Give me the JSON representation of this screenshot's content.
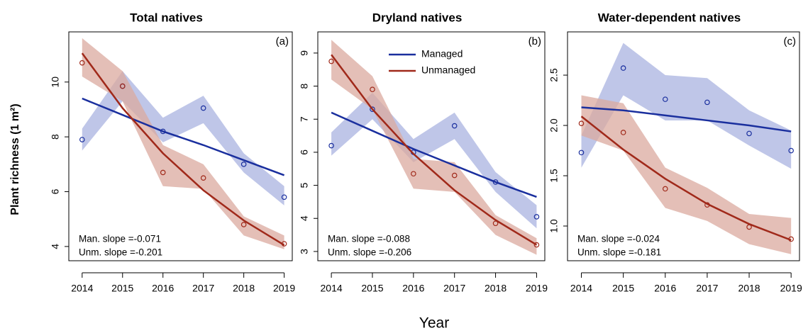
{
  "ylabel": "Plant richness (1 m²)",
  "xlabel": "Year",
  "chart_data": [
    {
      "type": "line",
      "title": "Total natives",
      "panel_label": "(a)",
      "x": [
        2014,
        2015,
        2016,
        2017,
        2018,
        2019
      ],
      "xlim": [
        2013.67,
        2019.2
      ],
      "xticks": [
        2014,
        2015,
        2016,
        2017,
        2018,
        2019
      ],
      "ylim": [
        3.48,
        11.83
      ],
      "yticks": [
        4,
        6,
        8,
        10
      ],
      "series": [
        {
          "color": "#1a2f9e",
          "band_color": "#a9b3e0",
          "annotation": "Man. slope =-0.071",
          "values": [
            7.9,
            9.85,
            8.2,
            9.05,
            7.0,
            5.8
          ],
          "fit": [
            9.4,
            8.8,
            8.2,
            7.7,
            7.15,
            6.6
          ],
          "lower": [
            7.5,
            9.3,
            7.8,
            8.5,
            6.7,
            5.5
          ],
          "upper": [
            8.3,
            10.4,
            8.7,
            9.5,
            7.4,
            6.2
          ]
        },
        {
          "color": "#a0291a",
          "band_color": "#dba99f",
          "annotation": "Unm. slope =-0.201",
          "values": [
            10.7,
            9.85,
            6.7,
            6.5,
            4.8,
            4.1
          ],
          "fit": [
            11.05,
            9.05,
            7.4,
            6.05,
            4.95,
            4.05
          ],
          "lower": [
            10.2,
            9.3,
            6.2,
            6.1,
            4.4,
            3.9
          ],
          "upper": [
            11.6,
            10.4,
            7.7,
            7.0,
            5.1,
            4.4
          ]
        }
      ]
    },
    {
      "type": "line",
      "title": "Dryland natives",
      "panel_label": "(b)",
      "legend": "top",
      "x": [
        2014,
        2015,
        2016,
        2017,
        2018,
        2019
      ],
      "xlim": [
        2013.67,
        2019.2
      ],
      "xticks": [
        2014,
        2015,
        2016,
        2017,
        2018,
        2019
      ],
      "ylim": [
        2.72,
        9.64
      ],
      "yticks": [
        3,
        4,
        5,
        6,
        7,
        8,
        9
      ],
      "series": [
        {
          "name": "Managed",
          "color": "#1a2f9e",
          "band_color": "#a9b3e0",
          "annotation": "Man. slope =-0.088",
          "values": [
            6.2,
            7.3,
            6.0,
            6.8,
            5.1,
            4.05
          ],
          "fit": [
            7.2,
            6.65,
            6.1,
            5.6,
            5.1,
            4.65
          ],
          "lower": [
            5.9,
            7.0,
            5.7,
            6.4,
            4.8,
            3.7
          ],
          "upper": [
            6.6,
            7.8,
            6.4,
            7.2,
            5.4,
            4.4
          ]
        },
        {
          "name": "Unmanaged",
          "color": "#a0291a",
          "band_color": "#dba99f",
          "annotation": "Unm. slope =-0.206",
          "values": [
            8.75,
            7.9,
            5.35,
            5.3,
            3.85,
            3.2
          ],
          "fit": [
            8.95,
            7.3,
            5.95,
            4.85,
            3.95,
            3.2
          ],
          "lower": [
            8.2,
            7.3,
            4.9,
            4.8,
            3.5,
            2.9
          ],
          "upper": [
            9.4,
            8.3,
            5.8,
            5.7,
            4.1,
            3.4
          ]
        }
      ]
    },
    {
      "type": "line",
      "title": "Water-dependent natives",
      "panel_label": "(c)",
      "x": [
        2014,
        2015,
        2016,
        2017,
        2018,
        2019
      ],
      "xlim": [
        2013.67,
        2019.2
      ],
      "xticks": [
        2014,
        2015,
        2016,
        2017,
        2018,
        2019
      ],
      "ylim": [
        0.655,
        2.93
      ],
      "yticks": [
        {
          "value": 1,
          "label": "1.0"
        },
        1.5,
        {
          "value": 2,
          "label": "2.0"
        },
        2.5
      ],
      "series": [
        {
          "color": "#1a2f9e",
          "band_color": "#a9b3e0",
          "annotation": "Man. slope =-0.024",
          "values": [
            1.73,
            2.57,
            2.26,
            2.23,
            1.92,
            1.75
          ],
          "fit": [
            2.18,
            2.15,
            2.1,
            2.05,
            2.0,
            1.94
          ],
          "lower": [
            1.58,
            2.3,
            2.05,
            2.05,
            1.8,
            1.57
          ],
          "upper": [
            1.9,
            2.82,
            2.5,
            2.47,
            2.15,
            1.95
          ]
        },
        {
          "color": "#a0291a",
          "band_color": "#dba99f",
          "annotation": "Unm. slope =-0.181",
          "values": [
            2.02,
            1.93,
            1.37,
            1.21,
            0.99,
            0.87
          ],
          "fit": [
            2.09,
            1.76,
            1.47,
            1.22,
            1.02,
            0.86
          ],
          "lower": [
            1.9,
            1.75,
            1.18,
            1.05,
            0.82,
            0.72
          ],
          "upper": [
            2.3,
            2.22,
            1.58,
            1.38,
            1.12,
            1.08
          ]
        }
      ]
    }
  ]
}
